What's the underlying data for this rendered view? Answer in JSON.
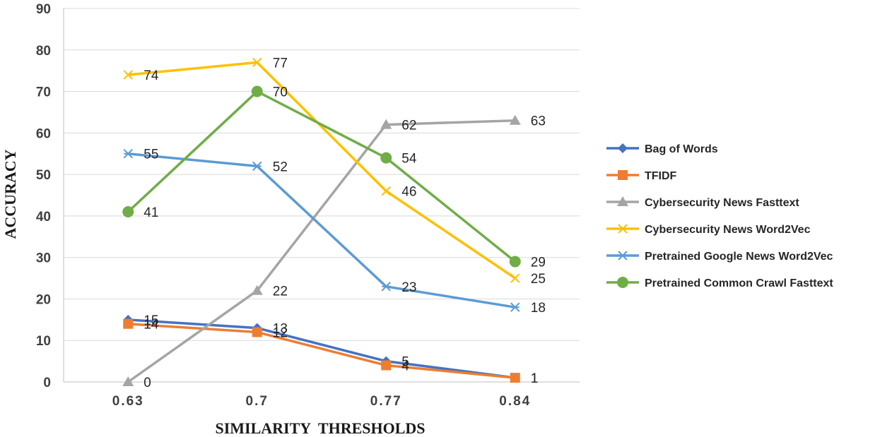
{
  "chart_data": {
    "type": "line",
    "categories": [
      "0.63",
      "0.7",
      "0.77",
      "0.84"
    ],
    "xlabel": "SIMILARITY  THRESHOLDS",
    "ylabel": "ACCURACY",
    "ylim": [
      0,
      90
    ],
    "yticks": [
      "0",
      "10",
      "20",
      "30",
      "40",
      "50",
      "60",
      "70",
      "80",
      "90"
    ],
    "grid": "horizontal",
    "legend_position": "right",
    "series": [
      {
        "name": "Bag of Words",
        "values": [
          15,
          13,
          5,
          1
        ],
        "labels": [
          "15",
          "13",
          "5",
          "1"
        ],
        "color": "#4472C4",
        "marker": "diamond"
      },
      {
        "name": "TFIDF",
        "values": [
          14,
          12,
          4,
          1
        ],
        "labels": [
          "14",
          "12",
          "4",
          "1"
        ],
        "color": "#ED7D31",
        "marker": "square"
      },
      {
        "name": "Cybersecurity News Fasttext",
        "values": [
          0,
          22,
          62,
          63
        ],
        "labels": [
          "0",
          "22",
          "62",
          "63"
        ],
        "color": "#A5A5A5",
        "marker": "triangle"
      },
      {
        "name": "Cybersecurity News Word2Vec",
        "values": [
          74,
          77,
          46,
          25
        ],
        "labels": [
          "74",
          "77",
          "46",
          "25"
        ],
        "color": "#FFC000",
        "marker": "x"
      },
      {
        "name": "Pretrained Google News Word2Vec",
        "values": [
          55,
          52,
          23,
          18
        ],
        "labels": [
          "55",
          "52",
          "23",
          "18"
        ],
        "color": "#5B9BD5",
        "marker": "star"
      },
      {
        "name": "Pretrained Common Crawl Fasttext",
        "values": [
          41,
          70,
          54,
          29
        ],
        "labels": [
          "41",
          "70",
          "54",
          "29"
        ],
        "color": "#70AD47",
        "marker": "circle"
      }
    ]
  }
}
